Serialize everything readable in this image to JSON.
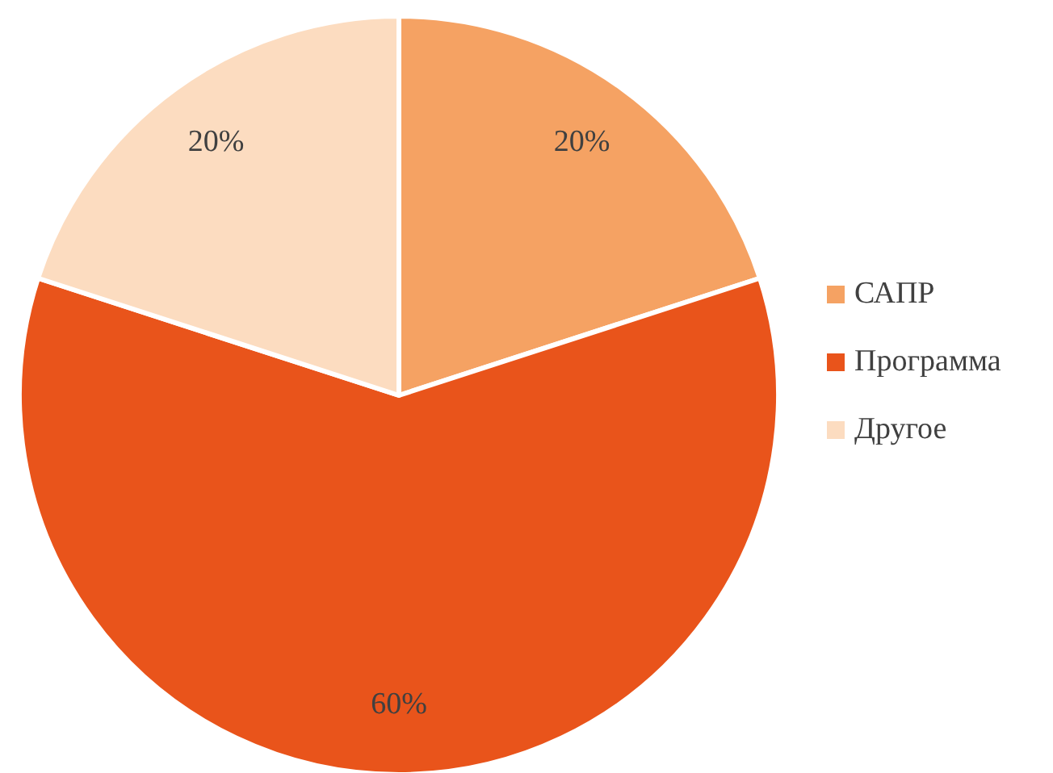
{
  "chart_data": {
    "type": "pie",
    "categories": [
      "САПР",
      "Программа",
      "Другое"
    ],
    "values": [
      20,
      60,
      20
    ],
    "colors": [
      "#f5a263",
      "#e9541b",
      "#fcdcc0"
    ],
    "value_labels": [
      "20%",
      "60%",
      "20%"
    ],
    "legend": "right"
  }
}
